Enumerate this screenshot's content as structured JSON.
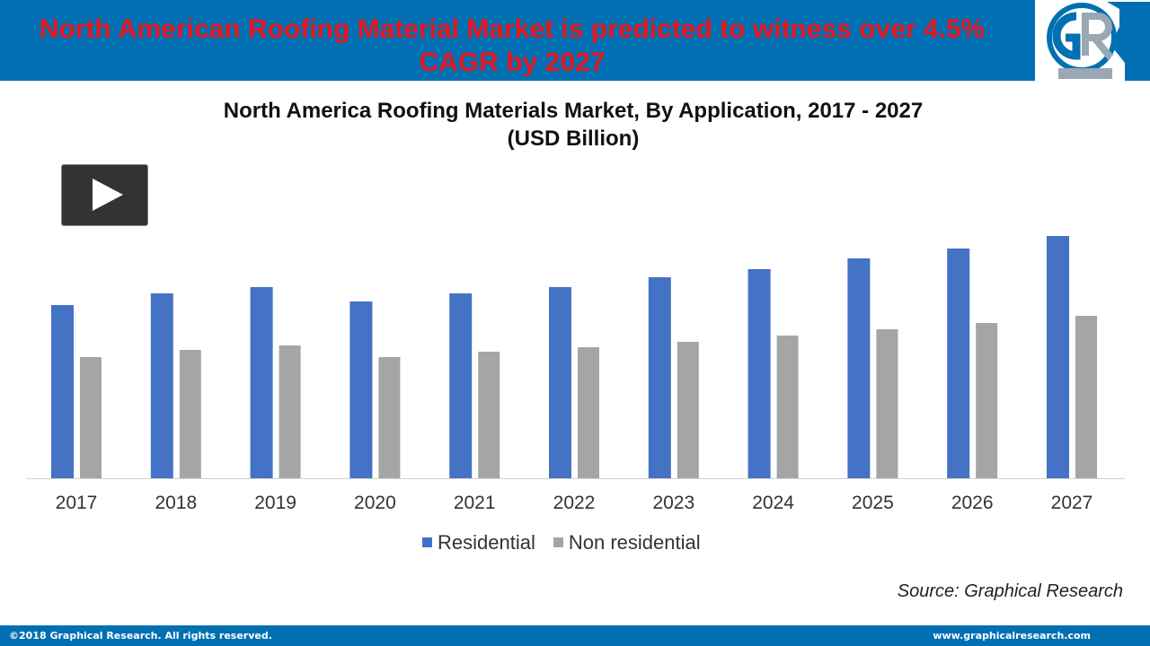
{
  "header": {
    "headline": "North American Roofing Material Market is predicted to witness over 4.5% CAGR by 2027",
    "logo_text": "GR"
  },
  "play_button": {
    "icon": "play-icon"
  },
  "chart_data": {
    "type": "bar",
    "title": "North America  Roofing Materials Market, By Application,  2017 - 2027",
    "subtitle": "(USD Billion)",
    "categories": [
      "2017",
      "2018",
      "2019",
      "2020",
      "2021",
      "2022",
      "2023",
      "2024",
      "2025",
      "2026",
      "2027"
    ],
    "series": [
      {
        "name": "Residential",
        "color": "#4472c4",
        "values": [
          19.3,
          20.6,
          21.3,
          19.7,
          20.6,
          21.3,
          22.4,
          23.3,
          24.5,
          25.6,
          27.0
        ]
      },
      {
        "name": "Non residential",
        "color": "#a5a5a5",
        "values": [
          13.5,
          14.3,
          14.8,
          13.5,
          14.1,
          14.6,
          15.2,
          15.9,
          16.6,
          17.3,
          18.1
        ]
      }
    ],
    "y_axis_shown": false,
    "grid": false,
    "legend": "bottom",
    "ylim": [
      0,
      30
    ]
  },
  "source": "Source: Graphical Research",
  "footer": {
    "copyright": "©2018 Graphical Research. All rights reserved.",
    "url": "www.graphicalresearch.com"
  }
}
